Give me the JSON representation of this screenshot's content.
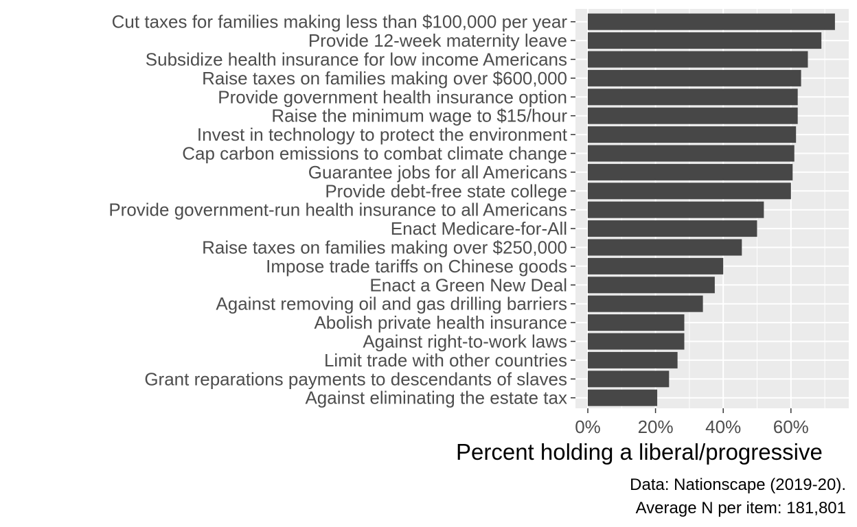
{
  "chart_data": {
    "type": "bar",
    "orientation": "horizontal",
    "categories": [
      "Cut taxes for families making less than $100,000 per year",
      "Provide 12-week maternity leave",
      "Subsidize health insurance for low income Americans",
      "Raise taxes on families making over $600,000",
      "Provide government health insurance option",
      "Raise the minimum wage to $15/hour",
      "Invest in technology to protect the environment",
      "Cap carbon emissions to combat climate change",
      "Guarantee jobs for all Americans",
      "Provide debt-free state college",
      "Provide government-run health insurance to all Americans",
      "Enact Medicare-for-All",
      "Raise taxes on families making over $250,000",
      "Impose trade tariffs on Chinese goods",
      "Enact a Green New Deal",
      "Against removing oil and gas drilling barriers",
      "Abolish private health insurance",
      "Against right-to-work laws",
      "Limit trade with other countries",
      "Grant reparations payments to descendants of slaves",
      "Against eliminating the estate tax"
    ],
    "values": [
      73,
      69,
      65,
      63,
      62,
      62,
      61.5,
      61,
      60.5,
      60,
      52,
      50,
      45.5,
      40,
      37.5,
      34,
      28.5,
      28.5,
      26.5,
      24,
      20.5
    ],
    "xlim": [
      0,
      76
    ],
    "xticks": [
      0,
      20,
      40,
      60
    ],
    "xtick_labels": [
      "0%",
      "20%",
      "40%",
      "60%"
    ],
    "xlabel": "Percent holding a liberal/progressive",
    "ylabel": "",
    "title": "",
    "grid": true,
    "bar_color": "#474747",
    "panel_color": "#ebebeb",
    "caption": [
      "Data: Nationscape (2019-20).",
      "Average N per item: 181,801"
    ]
  }
}
